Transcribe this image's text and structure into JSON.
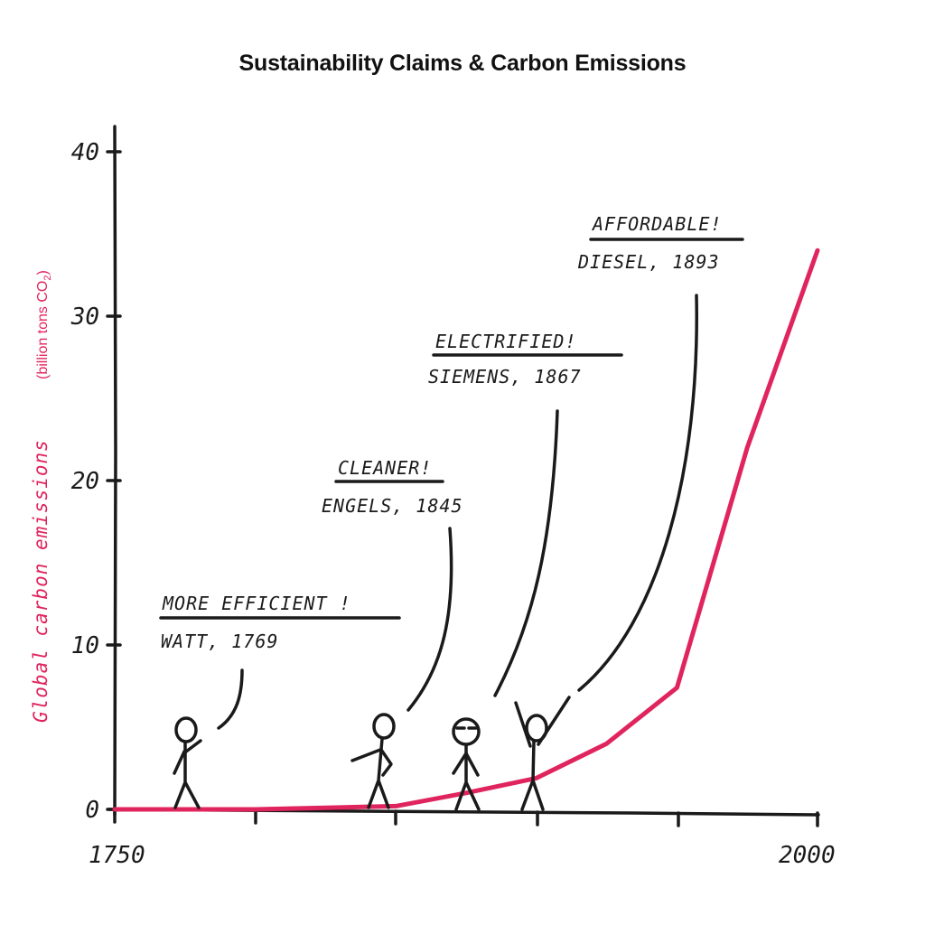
{
  "chart_data": {
    "type": "line",
    "title": "Sustainability Claims & Carbon Emissions",
    "ylabel": "Global carbon emissions",
    "yunit": "(billion tons CO",
    "yunit_sub": "2",
    "yunit_close": ")",
    "xlim": [
      1750,
      2000
    ],
    "ylim": [
      0,
      40
    ],
    "x_tick_labels": [
      "1750",
      "2000"
    ],
    "y_ticks": [
      0,
      10,
      20,
      30,
      40
    ],
    "y_tick_labels": [
      "0",
      "10",
      "20",
      "30",
      "40"
    ],
    "line_color": "#e0245e",
    "axis_color": "#1a1a1a",
    "series": [
      {
        "x": [
          1750,
          1800,
          1850,
          1875,
          1900,
          1925,
          1950,
          1975,
          2000
        ],
        "values": [
          0,
          0,
          0.2,
          1.0,
          1.9,
          4.0,
          7.4,
          22,
          34
        ]
      }
    ],
    "annotations": [
      {
        "claim": "MORE EFFICIENT !",
        "who": "WATT, 1769",
        "x": 1769
      },
      {
        "claim": "CLEANER!",
        "who": "ENGELS, 1845",
        "x": 1845
      },
      {
        "claim": "ELECTRIFIED!",
        "who": "SIEMENS, 1867",
        "x": 1867
      },
      {
        "claim": "AFFORDABLE!",
        "who": "DIESEL, 1893",
        "x": 1893
      }
    ]
  }
}
